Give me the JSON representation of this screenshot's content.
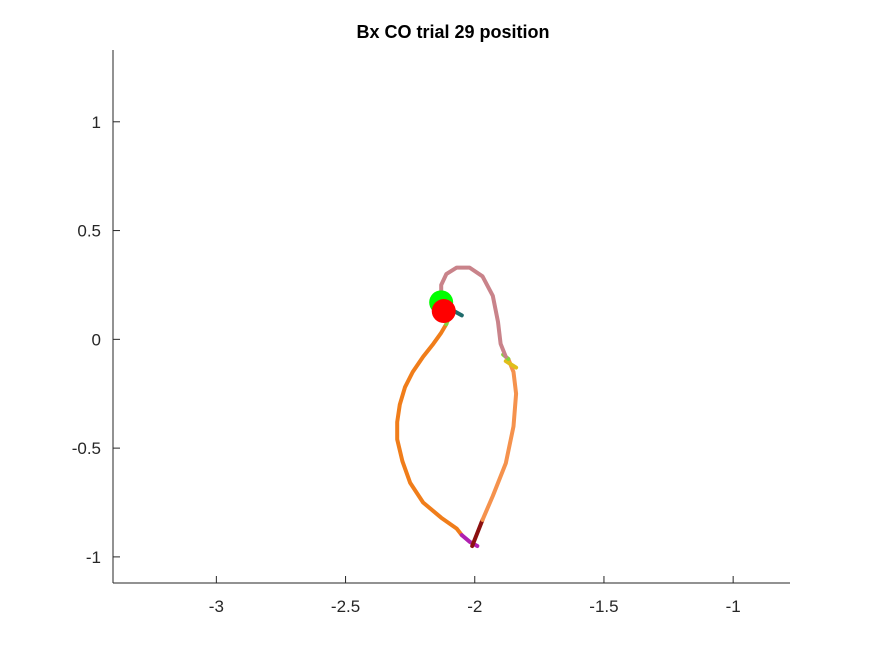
{
  "chart_data": {
    "type": "line",
    "title": "Bx  CO trial 29 position",
    "xlabel": "",
    "ylabel": "",
    "xlim": [
      -3.4,
      -0.78
    ],
    "ylim": [
      -1.12,
      1.33
    ],
    "xticks": [
      -3,
      -2.5,
      -2,
      -1.5,
      -1
    ],
    "xtick_labels": [
      "-3",
      "-2.5",
      "-2",
      "-1.5",
      "-1"
    ],
    "yticks": [
      -1,
      -0.5,
      0,
      0.5,
      1
    ],
    "ytick_labels": [
      "-1",
      "-0.5",
      "0",
      "0.5",
      "1"
    ],
    "grid": false,
    "axes_box": "left and bottom only",
    "series": [
      {
        "color": "#f07d1a",
        "points": [
          [
            -2.11,
            0.07
          ],
          [
            -2.13,
            0.03
          ],
          [
            -2.16,
            -0.02
          ],
          [
            -2.2,
            -0.08
          ],
          [
            -2.24,
            -0.15
          ],
          [
            -2.27,
            -0.22
          ],
          [
            -2.29,
            -0.3
          ],
          [
            -2.3,
            -0.38
          ],
          [
            -2.3,
            -0.46
          ],
          [
            -2.28,
            -0.56
          ],
          [
            -2.25,
            -0.66
          ],
          [
            -2.2,
            -0.75
          ],
          [
            -2.13,
            -0.82
          ],
          [
            -2.07,
            -0.87
          ],
          [
            -2.05,
            -0.9
          ]
        ]
      },
      {
        "color": "#b020b0",
        "points": [
          [
            -2.05,
            -0.9
          ],
          [
            -2.02,
            -0.93
          ],
          [
            -1.99,
            -0.95
          ]
        ]
      },
      {
        "color": "#8c1010",
        "points": [
          [
            -2.01,
            -0.95
          ],
          [
            -1.97,
            -0.83
          ]
        ]
      },
      {
        "color": "#f5924d",
        "points": [
          [
            -1.97,
            -0.83
          ],
          [
            -1.93,
            -0.72
          ],
          [
            -1.88,
            -0.57
          ],
          [
            -1.85,
            -0.4
          ],
          [
            -1.84,
            -0.25
          ],
          [
            -1.85,
            -0.15
          ],
          [
            -1.87,
            -0.09
          ]
        ]
      },
      {
        "color": "#e0be1a",
        "points": [
          [
            -1.88,
            -0.1
          ],
          [
            -1.84,
            -0.13
          ]
        ]
      },
      {
        "color": "#7fd63a",
        "points": [
          [
            -1.89,
            -0.07
          ],
          [
            -1.87,
            -0.09
          ]
        ]
      },
      {
        "color": "#c9838a",
        "points": [
          [
            -1.88,
            -0.08
          ],
          [
            -1.9,
            -0.02
          ],
          [
            -1.91,
            0.08
          ],
          [
            -1.93,
            0.2
          ],
          [
            -1.97,
            0.29
          ],
          [
            -2.02,
            0.33
          ],
          [
            -2.07,
            0.33
          ],
          [
            -2.11,
            0.3
          ],
          [
            -2.13,
            0.25
          ],
          [
            -2.13,
            0.19
          ]
        ]
      },
      {
        "color": "#1f6b6b",
        "points": [
          [
            -2.08,
            0.13
          ],
          [
            -2.05,
            0.11
          ]
        ]
      },
      {
        "color": "#7fd63a",
        "points": [
          [
            -2.1,
            0.1
          ],
          [
            -2.11,
            0.07
          ]
        ]
      }
    ],
    "markers": [
      {
        "shape": "circle",
        "color": "#00ff00",
        "x": -2.13,
        "y": 0.17
      },
      {
        "shape": "circle",
        "color": "#ff0000",
        "x": -2.12,
        "y": 0.13
      }
    ]
  }
}
